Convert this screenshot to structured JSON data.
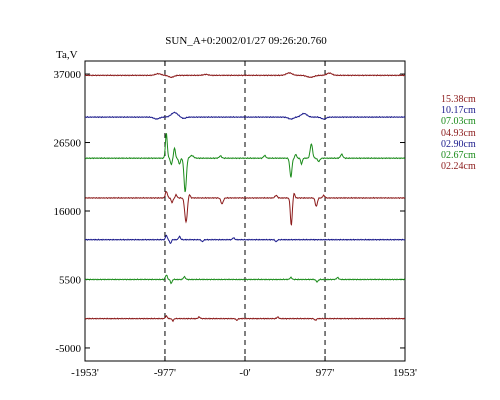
{
  "chart_data": {
    "type": "line",
    "title": "SUN_A+0:2002/01/27 09:26:20.760",
    "ylabel": "Ta,V",
    "xlabel": "",
    "xlim": [
      -1953,
      1953
    ],
    "ylim": [
      -7000,
      39000
    ],
    "x_ticks": [
      {
        "value": -1953,
        "label": "-1953'"
      },
      {
        "value": -977,
        "label": "-977'"
      },
      {
        "value": 0,
        "label": "-0'"
      },
      {
        "value": 977,
        "label": "977'"
      },
      {
        "value": 1953,
        "label": "1953'"
      }
    ],
    "y_ticks": [
      {
        "value": 37000,
        "label": "37000"
      },
      {
        "value": 26500,
        "label": "26500"
      },
      {
        "value": 16000,
        "label": "16000"
      },
      {
        "value": 5500,
        "label": "5500"
      },
      {
        "value": -5000,
        "label": "-5000"
      }
    ],
    "dashed_verticals": [
      -977,
      0,
      977
    ],
    "grid": false,
    "legend_position": "right",
    "series": [
      {
        "name": "15.38cm",
        "color": "#8b1a1a",
        "baseline": 36800,
        "features": [
          {
            "x": -1060,
            "dy": 250,
            "w": 50
          },
          {
            "x": -900,
            "dy": -300,
            "w": 45
          },
          {
            "x": -480,
            "dy": 150,
            "w": 40
          },
          {
            "x": 540,
            "dy": 380,
            "w": 50
          },
          {
            "x": 800,
            "dy": -300,
            "w": 60
          },
          {
            "x": 1030,
            "dy": 350,
            "w": 45
          }
        ]
      },
      {
        "name": "10.17cm",
        "color": "#1a1a8b",
        "baseline": 30400,
        "features": [
          {
            "x": -1080,
            "dy": -300,
            "w": 45
          },
          {
            "x": -860,
            "dy": 700,
            "w": 55
          },
          {
            "x": -750,
            "dy": -200,
            "w": 40
          },
          {
            "x": 560,
            "dy": -300,
            "w": 45
          },
          {
            "x": 720,
            "dy": 550,
            "w": 50
          },
          {
            "x": 960,
            "dy": -300,
            "w": 40
          }
        ]
      },
      {
        "name": "07.03cm",
        "color": "#1a8b1a",
        "baseline": 24100,
        "features": [
          {
            "x": -960,
            "dy": 3800,
            "w": 16
          },
          {
            "x": -900,
            "dy": -1000,
            "w": 14
          },
          {
            "x": -860,
            "dy": 1600,
            "w": 14
          },
          {
            "x": -800,
            "dy": -900,
            "w": 16
          },
          {
            "x": -730,
            "dy": -5200,
            "w": 20
          },
          {
            "x": -650,
            "dy": 400,
            "w": 30
          },
          {
            "x": -300,
            "dy": 350,
            "w": 20
          },
          {
            "x": 240,
            "dy": 400,
            "w": 20
          },
          {
            "x": 560,
            "dy": -2900,
            "w": 18
          },
          {
            "x": 620,
            "dy": 600,
            "w": 14
          },
          {
            "x": 690,
            "dy": -900,
            "w": 14
          },
          {
            "x": 810,
            "dy": 2200,
            "w": 20
          },
          {
            "x": 900,
            "dy": -500,
            "w": 20
          },
          {
            "x": 1180,
            "dy": 600,
            "w": 20
          }
        ]
      },
      {
        "name": "04.93cm",
        "color": "#8b1a1a",
        "baseline": 18000,
        "features": [
          {
            "x": -960,
            "dy": 1000,
            "w": 18
          },
          {
            "x": -890,
            "dy": -700,
            "w": 16
          },
          {
            "x": -840,
            "dy": 500,
            "w": 14
          },
          {
            "x": -720,
            "dy": -3700,
            "w": 22
          },
          {
            "x": -680,
            "dy": 600,
            "w": 16
          },
          {
            "x": -280,
            "dy": -900,
            "w": 20
          },
          {
            "x": 380,
            "dy": 400,
            "w": 20
          },
          {
            "x": 565,
            "dy": -4200,
            "w": 16
          },
          {
            "x": 600,
            "dy": 700,
            "w": 14
          },
          {
            "x": 870,
            "dy": -1300,
            "w": 18
          },
          {
            "x": 960,
            "dy": 400,
            "w": 16
          }
        ]
      },
      {
        "name": "02.90cm",
        "color": "#1a1a8b",
        "baseline": 11600,
        "features": [
          {
            "x": -960,
            "dy": 700,
            "w": 14
          },
          {
            "x": -910,
            "dy": -600,
            "w": 14
          },
          {
            "x": -800,
            "dy": 500,
            "w": 16
          },
          {
            "x": -520,
            "dy": -300,
            "w": 16
          },
          {
            "x": -140,
            "dy": 300,
            "w": 16
          },
          {
            "x": 380,
            "dy": -300,
            "w": 16
          }
        ]
      },
      {
        "name": "02.67cm",
        "color": "#1a8b1a",
        "baseline": 5500,
        "features": [
          {
            "x": -960,
            "dy": 700,
            "w": 16
          },
          {
            "x": -900,
            "dy": -600,
            "w": 14
          },
          {
            "x": -740,
            "dy": 400,
            "w": 18
          },
          {
            "x": 560,
            "dy": 300,
            "w": 18
          },
          {
            "x": 880,
            "dy": -350,
            "w": 18
          },
          {
            "x": 1130,
            "dy": 300,
            "w": 18
          }
        ]
      },
      {
        "name": "02.24cm",
        "color": "#8b1a1a",
        "baseline": -500,
        "features": [
          {
            "x": -960,
            "dy": 400,
            "w": 16
          },
          {
            "x": -880,
            "dy": -350,
            "w": 14
          },
          {
            "x": -560,
            "dy": 250,
            "w": 16
          },
          {
            "x": -100,
            "dy": -250,
            "w": 16
          },
          {
            "x": 400,
            "dy": 250,
            "w": 16
          },
          {
            "x": 860,
            "dy": -250,
            "w": 16
          }
        ]
      }
    ]
  }
}
